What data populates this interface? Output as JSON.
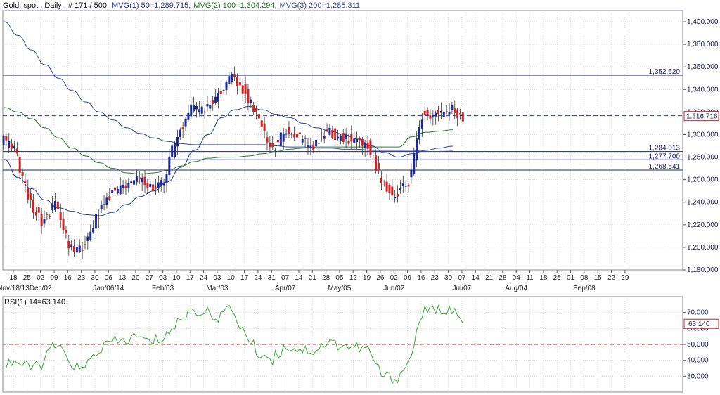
{
  "header": {
    "instrument": "Gold, spot , Daily , # 171 / 500,",
    "mvg1": "MVG(1) 50=1,289.715,",
    "mvg2": "MVG(2) 100=1,304.294,",
    "mvg3": "MVG(3) 200=1,285.311"
  },
  "rsi_header": "RSI(1) 14=63.140",
  "colors": {
    "up": "#1a2a9a",
    "down": "#d42020",
    "ma50": "#2a3a9a",
    "ma100": "#2a7a2a",
    "ma200": "#3a4aa0",
    "hline": "#1a237e",
    "current": "#2a3a9a",
    "rsi_line": "#3aaa3a",
    "rsi_ref": "#cc2222",
    "grid": "#c8c8d0"
  },
  "price_axis": {
    "min": 1180,
    "max": 1410,
    "ticks": [
      "1,180.000",
      "1,200.000",
      "1,220.000",
      "1,240.000",
      "1,260.000",
      "1,280.000",
      "1,300.000",
      "1,320.000",
      "1,340.000",
      "1,360.000",
      "1,380.000",
      "1,400.000"
    ],
    "tick_values": [
      1180,
      1200,
      1220,
      1240,
      1260,
      1280,
      1300,
      1320,
      1340,
      1360,
      1380,
      1400
    ]
  },
  "rsi_axis": {
    "min": 20,
    "max": 80,
    "ticks": [
      "30.000",
      "40.000",
      "50.000",
      "60.000",
      "70.000"
    ],
    "tick_values": [
      30,
      40,
      50,
      60,
      70
    ],
    "current_label": "63.140",
    "current": 63.14,
    "ref_level": 50
  },
  "level_labels": [
    {
      "label": "1,352.620",
      "value": 1352.62
    },
    {
      "label": "1,284.913",
      "value": 1284.913
    },
    {
      "label": "1,277.700",
      "value": 1277.7
    },
    {
      "label": "1,268.541",
      "value": 1268.541
    }
  ],
  "current_price": {
    "label": "1,316.716",
    "value": 1316.716
  },
  "day_labels": [
    "18",
    "25",
    "02",
    "09",
    "16",
    "23",
    "30",
    "06",
    "13",
    "20",
    "27",
    "03",
    "10",
    "17",
    "24",
    "03",
    "10",
    "17",
    "24",
    "31",
    "07",
    "14",
    "21",
    "28",
    "05",
    "12",
    "19",
    "26",
    "02",
    "09",
    "16",
    "23",
    "30",
    "07",
    "14",
    "21",
    "28",
    "04",
    "11",
    "18",
    "25",
    "01",
    "08",
    "15",
    "22",
    "29"
  ],
  "month_labels": [
    {
      "label": "Nov/18/13",
      "index": 0
    },
    {
      "label": "Dec/02",
      "index": 2
    },
    {
      "label": "Jan/06/14",
      "index": 7
    },
    {
      "label": "Feb/03",
      "index": 11
    },
    {
      "label": "Mar/03",
      "index": 15
    },
    {
      "label": "Apr/07",
      "index": 20
    },
    {
      "label": "May/05",
      "index": 24
    },
    {
      "label": "Jun/02",
      "index": 28
    },
    {
      "label": "Jul/07",
      "index": 33
    },
    {
      "label": "Aug/04",
      "index": 37
    },
    {
      "label": "Sep/08",
      "index": 42
    }
  ],
  "chart_data": [
    {
      "type": "line",
      "title": "Gold, spot , Daily",
      "note": "Candlestick price chart with moving averages and horizontal levels (weekly approximations)",
      "x": [
        "Nov/18/13",
        "Nov/25",
        "Dec/02",
        "Dec/09",
        "Dec/16",
        "Dec/23",
        "Dec/30",
        "Jan/06/14",
        "Jan/13",
        "Jan/20",
        "Jan/27",
        "Feb/03",
        "Feb/10",
        "Feb/17",
        "Feb/24",
        "Mar/03",
        "Mar/10",
        "Mar/17",
        "Mar/24",
        "Mar/31",
        "Apr/07",
        "Apr/14",
        "Apr/21",
        "Apr/28",
        "May/05",
        "May/12",
        "May/19",
        "May/26",
        "Jun/02",
        "Jun/09",
        "Jun/16",
        "Jun/23",
        "Jun/30",
        "Jul/07"
      ],
      "series": [
        {
          "name": "Close",
          "values": [
            1288,
            1243,
            1222,
            1238,
            1202,
            1198,
            1225,
            1247,
            1252,
            1264,
            1252,
            1260,
            1302,
            1322,
            1324,
            1336,
            1355,
            1337,
            1310,
            1288,
            1303,
            1296,
            1290,
            1302,
            1299,
            1294,
            1292,
            1258,
            1245,
            1258,
            1317,
            1318,
            1322,
            1316.7
          ]
        },
        {
          "name": "MVG(1) 50",
          "values": [
            1278,
            1262,
            1252,
            1242,
            1235,
            1232,
            1229,
            1228,
            1231,
            1238,
            1245,
            1250,
            1258,
            1271,
            1286,
            1300,
            1315,
            1322,
            1325,
            1322,
            1318,
            1315,
            1310,
            1306,
            1303,
            1300,
            1296,
            1290,
            1284,
            1280,
            1283,
            1286,
            1288,
            1289.7
          ]
        },
        {
          "name": "MVG(2) 100",
          "values": [
            1324,
            1320,
            1314,
            1306,
            1297,
            1288,
            1281,
            1275,
            1270,
            1266,
            1265,
            1266,
            1268,
            1272,
            1276,
            1279,
            1280,
            1280,
            1281,
            1283,
            1285,
            1287,
            1288,
            1289,
            1289,
            1289,
            1289,
            1289,
            1289,
            1289,
            1298,
            1302,
            1303,
            1304.3
          ]
        },
        {
          "name": "MVG(3) 200",
          "values": [
            1400,
            1388,
            1375,
            1362,
            1350,
            1339,
            1329,
            1320,
            1313,
            1306,
            1301,
            1297,
            1294,
            1292,
            1291,
            1291,
            1291,
            1291,
            1291,
            1291,
            1290,
            1289,
            1289,
            1288,
            1288,
            1287,
            1287,
            1286,
            1286,
            1286,
            1286,
            1285,
            1285,
            1285.3
          ]
        }
      ],
      "horizontal_levels": [
        1352.62,
        1284.913,
        1277.7,
        1268.541
      ],
      "ylim": [
        1180,
        1410
      ],
      "grid": true
    },
    {
      "type": "line",
      "title": "RSI(1) 14=63.140",
      "x": [
        "Nov/18/13",
        "Nov/25",
        "Dec/02",
        "Dec/09",
        "Dec/16",
        "Dec/23",
        "Dec/30",
        "Jan/06/14",
        "Jan/13",
        "Jan/20",
        "Jan/27",
        "Feb/03",
        "Feb/10",
        "Feb/17",
        "Feb/24",
        "Mar/03",
        "Mar/10",
        "Mar/17",
        "Mar/24",
        "Mar/31",
        "Apr/07",
        "Apr/14",
        "Apr/21",
        "Apr/28",
        "May/05",
        "May/12",
        "May/19",
        "May/26",
        "Jun/02",
        "Jun/09",
        "Jun/16",
        "Jun/23",
        "Jun/30",
        "Jul/07"
      ],
      "series": [
        {
          "name": "RSI(1) 14",
          "values": [
            40,
            35,
            38,
            50,
            40,
            33,
            45,
            51,
            52,
            55,
            51,
            55,
            63,
            72,
            70,
            68,
            72,
            56,
            44,
            41,
            49,
            47,
            46,
            51,
            50,
            48,
            47,
            31,
            28,
            38,
            70,
            71,
            73,
            63.14
          ]
        }
      ],
      "reference_line": 50,
      "ylim": [
        20,
        80
      ],
      "grid": true
    }
  ]
}
